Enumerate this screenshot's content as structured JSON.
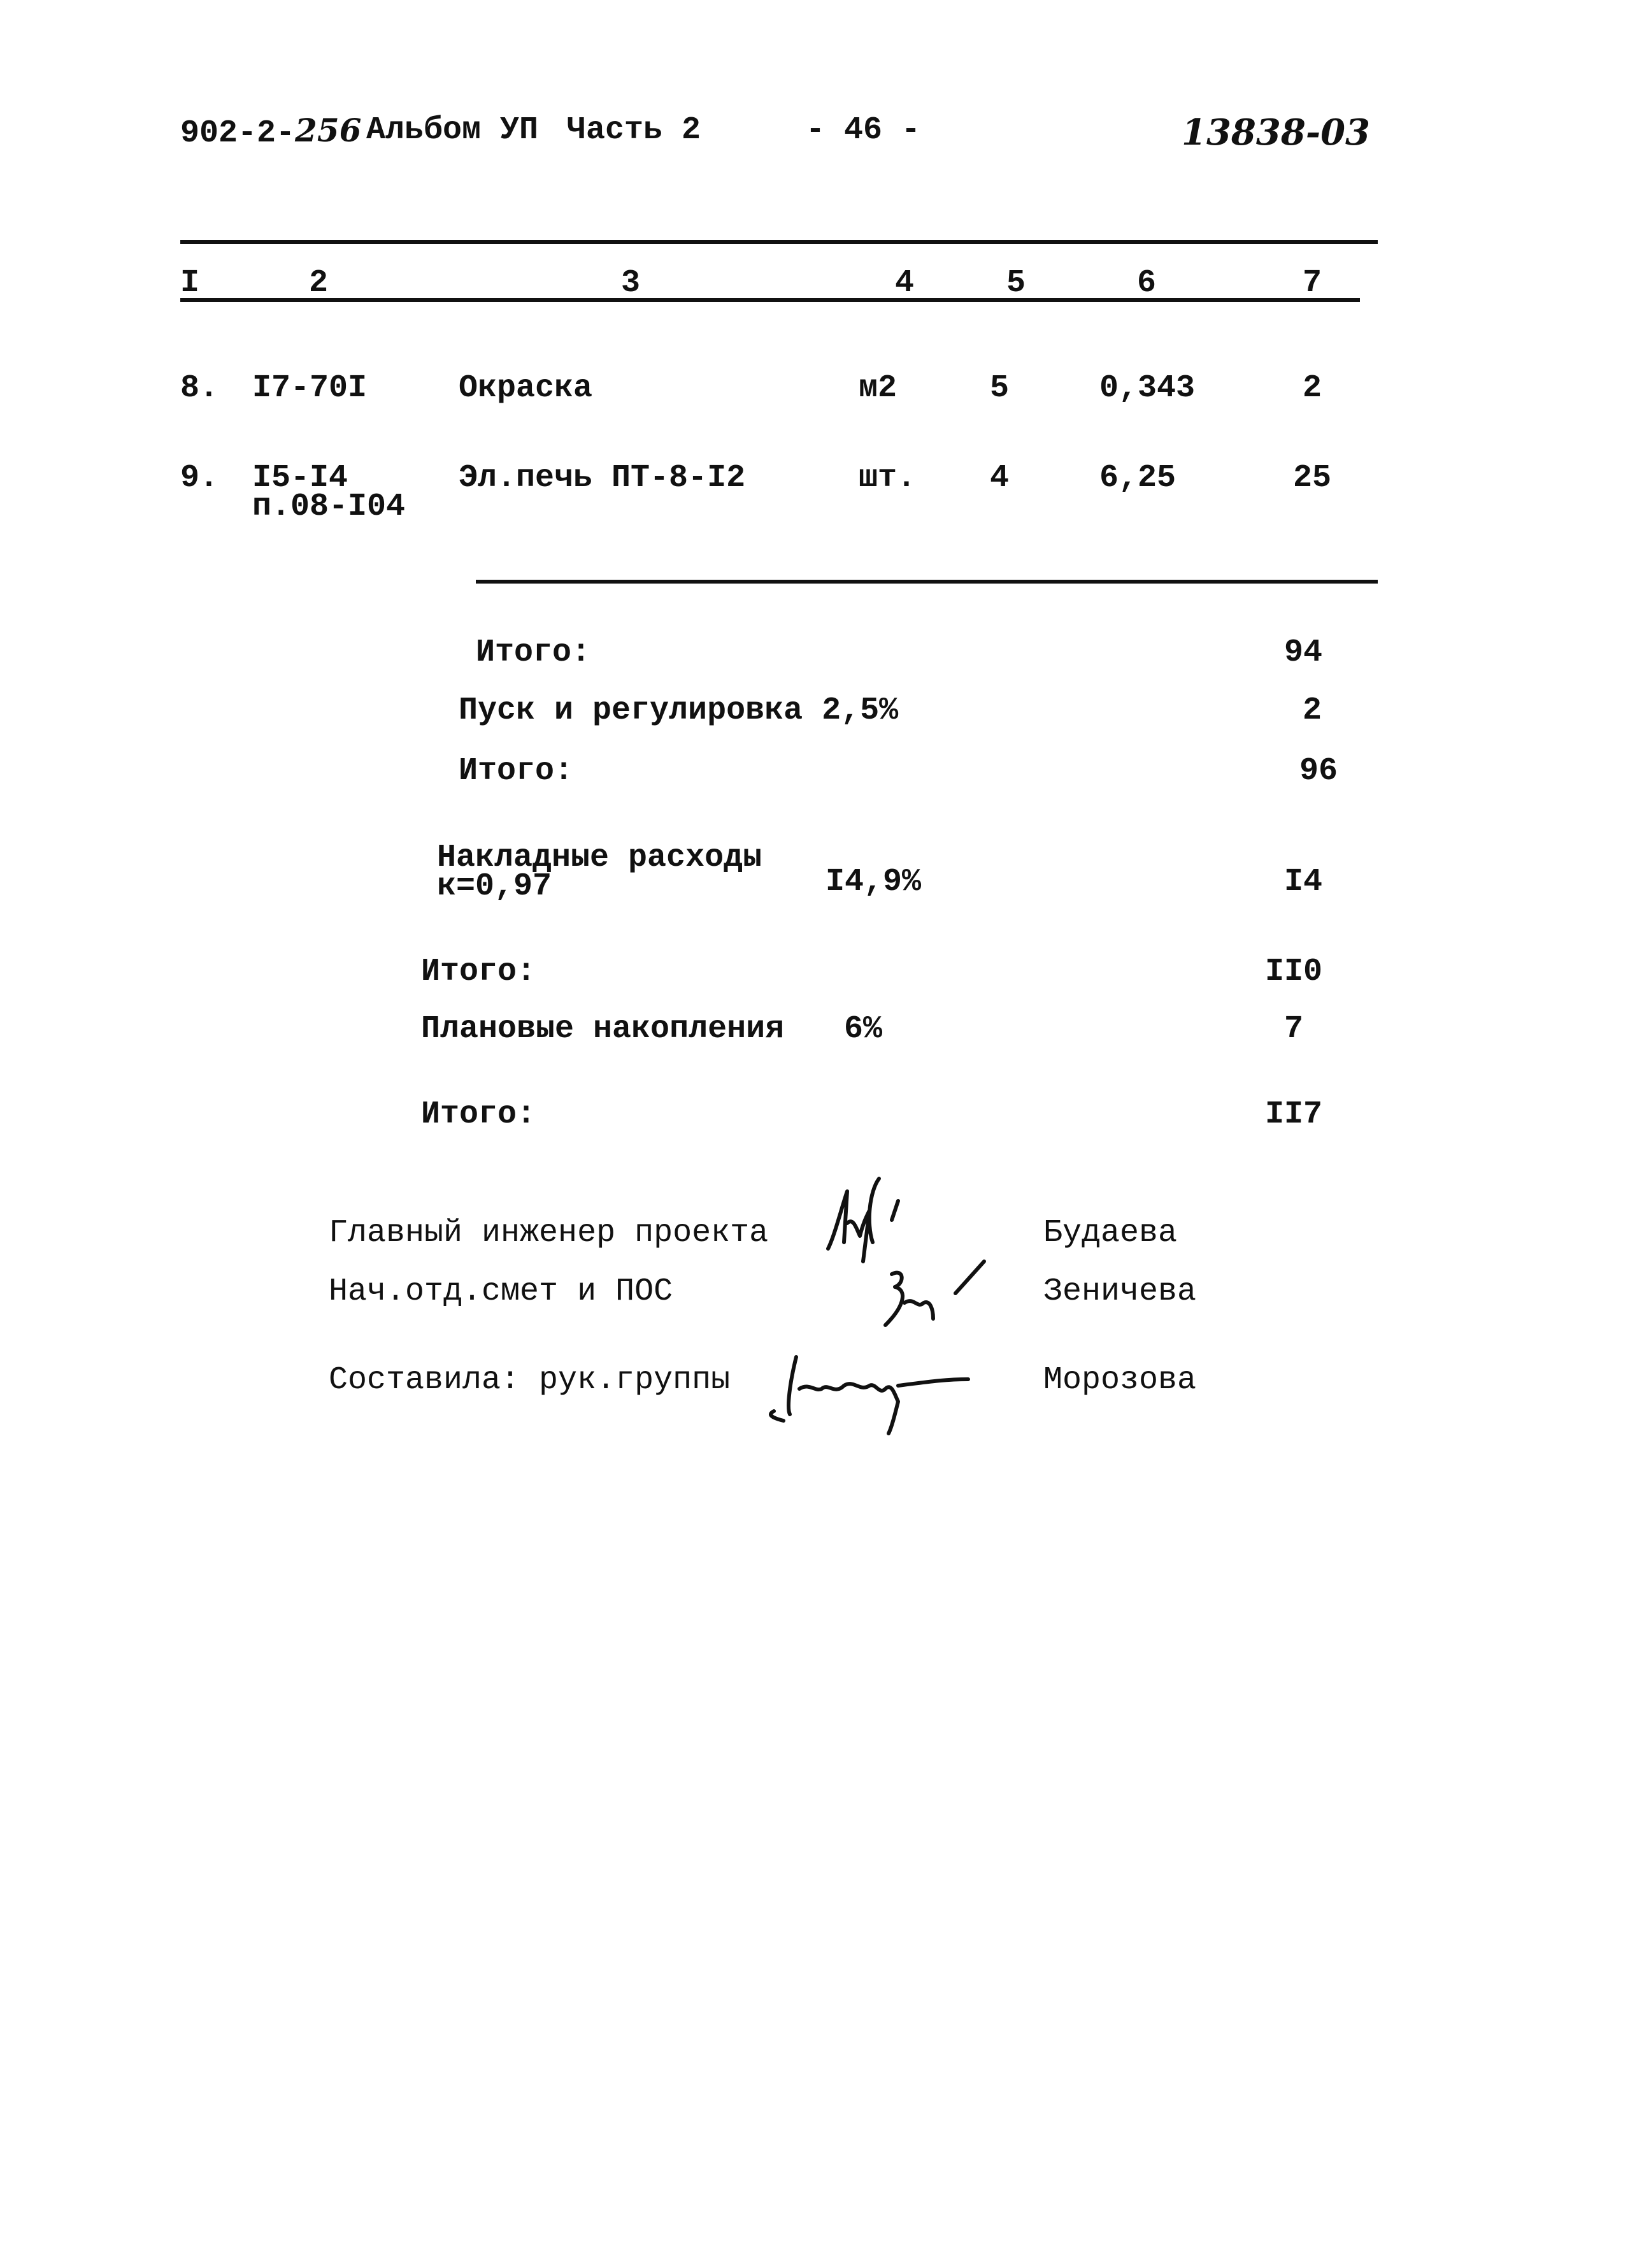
{
  "header": {
    "doc_code_prefix": "902-2-",
    "doc_code_hand": "256",
    "album": "Альбом УП",
    "part": "Часть 2",
    "page_number": "- 46 -",
    "inventory_number": "13838-03"
  },
  "table": {
    "columns": [
      "I",
      "2",
      "3",
      "4",
      "5",
      "6",
      "7"
    ],
    "rows": [
      {
        "no": "8.",
        "code": [
          "I7-70I"
        ],
        "name": "Окраска",
        "unit": "м2",
        "qty": "5",
        "price": "0,343",
        "total": "2"
      },
      {
        "no": "9.",
        "code": [
          "I5-I4",
          "п.08-I04"
        ],
        "name": "Эл.печь ПТ-8-I2",
        "unit": "шт.",
        "qty": "4",
        "price": "6,25",
        "total": "25"
      }
    ]
  },
  "summary": [
    {
      "label": "Итого:",
      "rate": "",
      "value": "94"
    },
    {
      "label": "Пуск и регулировка 2,5%",
      "rate": "",
      "value": "2"
    },
    {
      "label": "Итого:",
      "rate": "",
      "value": "96"
    },
    {
      "label": "Накладные расходы",
      "label2": "к=0,97",
      "rate": "I4,9%",
      "value": "I4"
    },
    {
      "label": "Итого:",
      "rate": "",
      "value": "II0"
    },
    {
      "label": "Плановые накопления",
      "rate": "6%",
      "value": "7"
    },
    {
      "label": "Итого:",
      "rate": "",
      "value": "II7"
    }
  ],
  "signatures": [
    {
      "role": "Главный инженер проекта",
      "name": "Будаева"
    },
    {
      "role": "Нач.отд.смет и ПОС",
      "name": "Зеничева"
    },
    {
      "role": "Составила: рук.группы",
      "name": "Морозова"
    }
  ]
}
